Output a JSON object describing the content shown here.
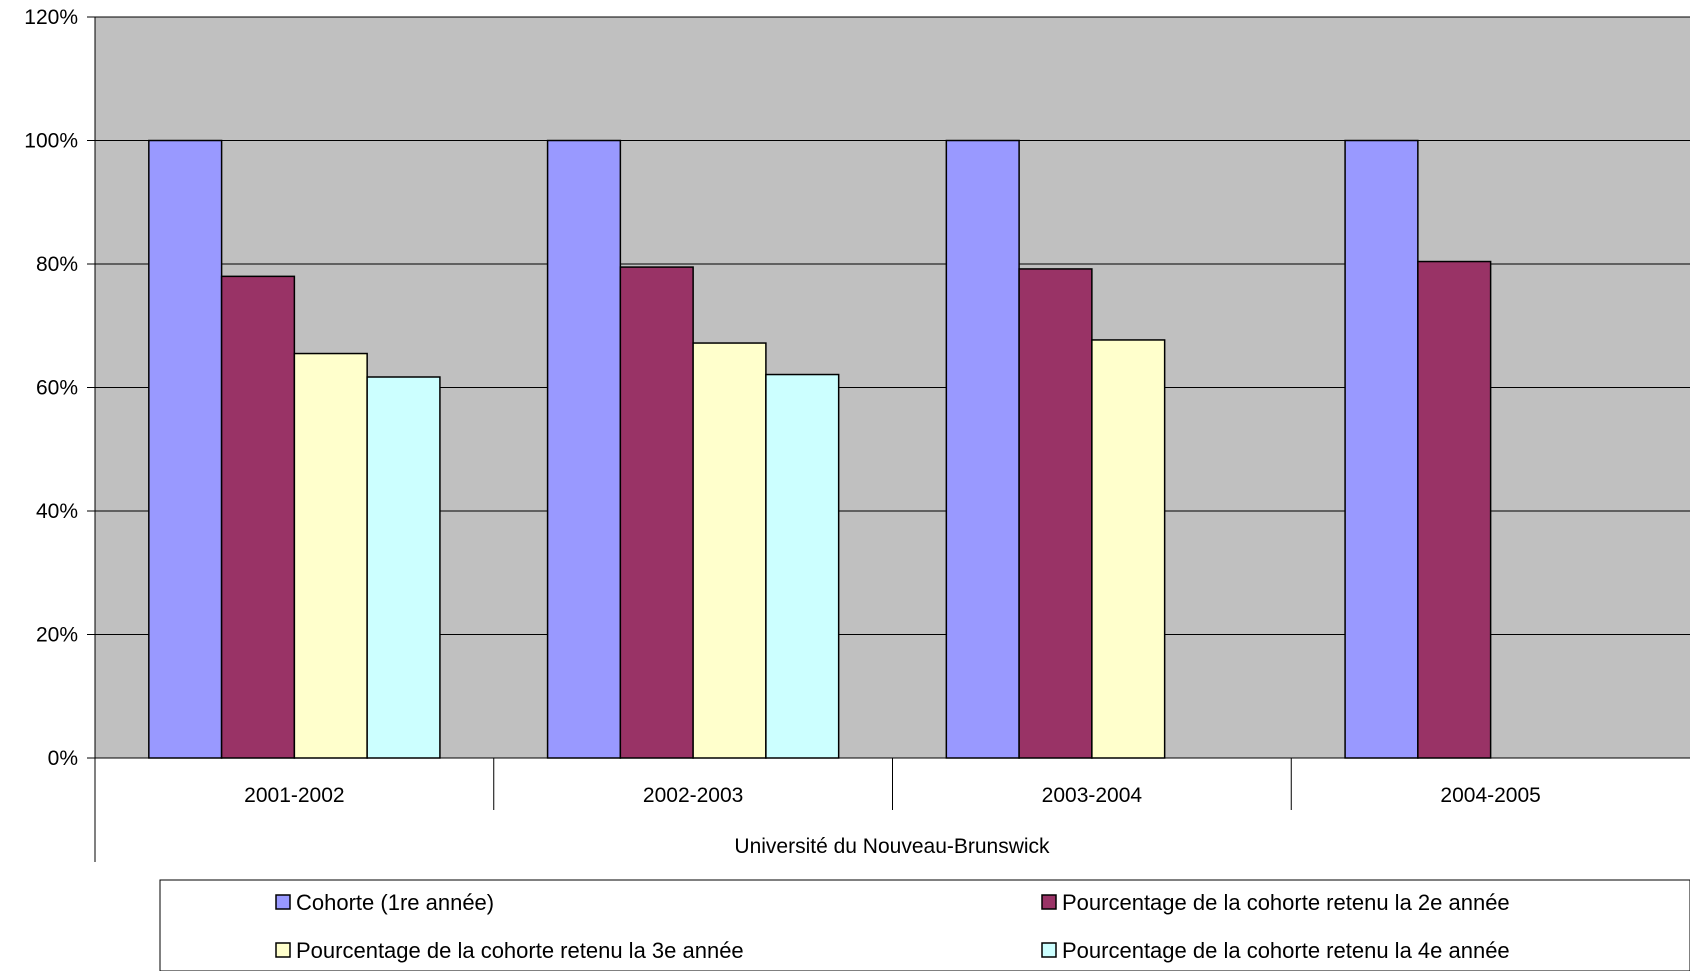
{
  "chart_data": {
    "type": "bar",
    "title": "",
    "xlabel": "",
    "ylabel": "",
    "group_label": "Université du Nouveau-Brunswick",
    "categories": [
      "2001-2002",
      "2002-2003",
      "2003-2004",
      "2004-2005"
    ],
    "series": [
      {
        "name": "Cohorte (1re année)",
        "color": "#9999ff",
        "values": [
          100,
          100,
          100,
          100
        ]
      },
      {
        "name": "Pourcentage de la cohorte retenu la 2e année",
        "color": "#993366",
        "values": [
          78,
          79.5,
          79.2,
          80.4
        ]
      },
      {
        "name": "Pourcentage de la cohorte retenu la 3e année",
        "color": "#ffffcc",
        "values": [
          65.5,
          67.2,
          67.7,
          null
        ]
      },
      {
        "name": "Pourcentage de la cohorte retenu la 4e année",
        "color": "#ccffff",
        "values": [
          61.7,
          62.1,
          null,
          null
        ]
      }
    ],
    "ylim": [
      0,
      120
    ],
    "yticks": [
      "0%",
      "20%",
      "40%",
      "60%",
      "80%",
      "100%",
      "120%"
    ],
    "ytick_values": [
      0,
      20,
      40,
      60,
      80,
      100,
      120
    ],
    "grid": true,
    "plot_background": "#c0c0c0",
    "legend_position": "bottom"
  }
}
